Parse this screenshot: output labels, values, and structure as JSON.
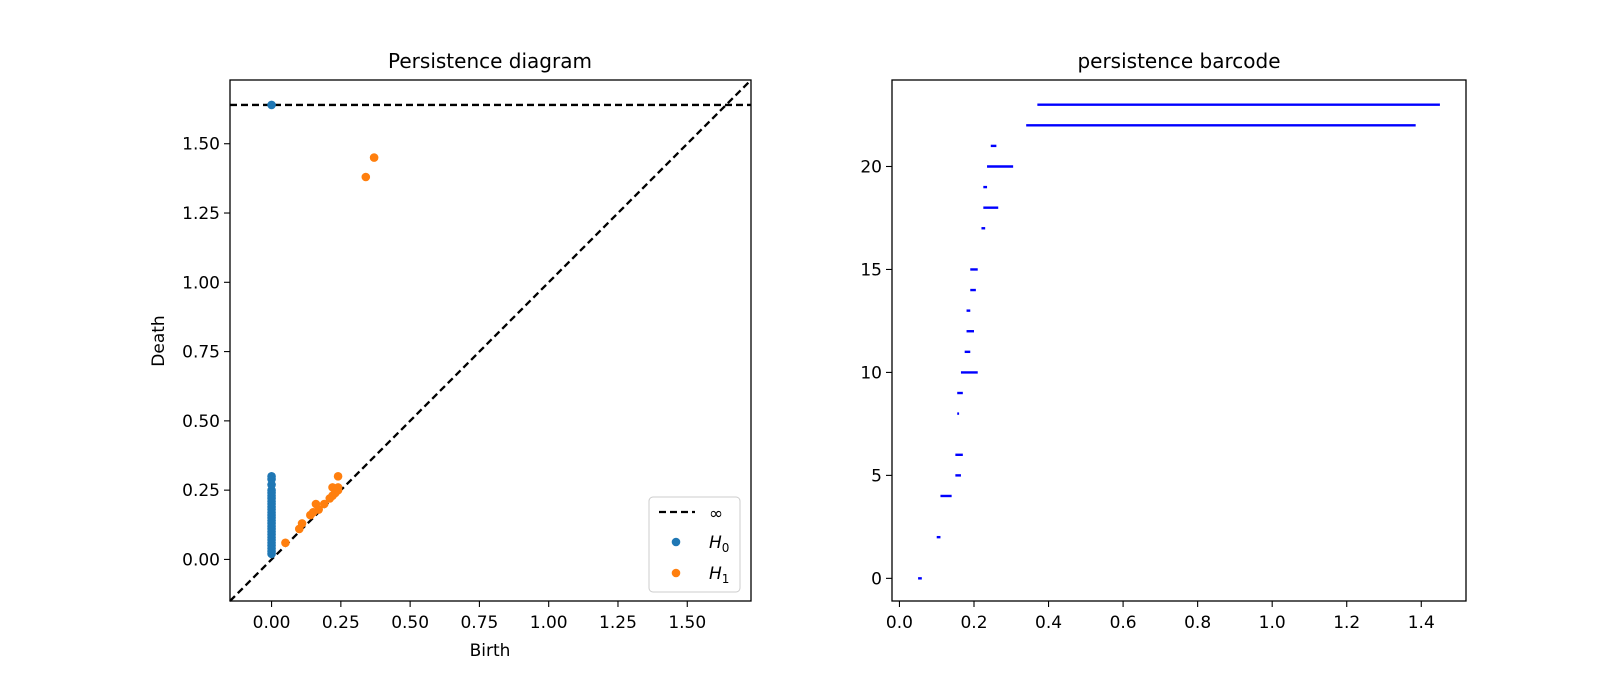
{
  "chart_data": [
    {
      "type": "scatter",
      "title": "Persistence diagram",
      "xlabel": "Birth",
      "ylabel": "Death",
      "xlim": [
        -0.15,
        1.73
      ],
      "ylim": [
        -0.15,
        1.73
      ],
      "grid": false,
      "legend_position": "bottom-right",
      "x_ticks": [
        0.0,
        0.25,
        0.5,
        0.75,
        1.0,
        1.25,
        1.5
      ],
      "x_tick_labels": [
        "0.00",
        "0.25",
        "0.50",
        "0.75",
        "1.00",
        "1.25",
        "1.50"
      ],
      "y_ticks": [
        0.0,
        0.25,
        0.5,
        0.75,
        1.0,
        1.25,
        1.5
      ],
      "y_tick_labels": [
        "0.00",
        "0.25",
        "0.50",
        "0.75",
        "1.00",
        "1.25",
        "1.50"
      ],
      "infinity_line": {
        "y": 1.64,
        "label": "∞",
        "style": "dashed",
        "color": "#000000"
      },
      "diagonal": {
        "style": "dashed",
        "color": "#000000"
      },
      "series": [
        {
          "name": "H0",
          "label_base": "H",
          "label_sub": "0",
          "color": "#1f77b4",
          "points": [
            [
              0,
              0.02
            ],
            [
              0,
              0.03
            ],
            [
              0,
              0.04
            ],
            [
              0,
              0.05
            ],
            [
              0,
              0.06
            ],
            [
              0,
              0.07
            ],
            [
              0,
              0.08
            ],
            [
              0,
              0.09
            ],
            [
              0,
              0.1
            ],
            [
              0,
              0.11
            ],
            [
              0,
              0.12
            ],
            [
              0,
              0.13
            ],
            [
              0,
              0.14
            ],
            [
              0,
              0.15
            ],
            [
              0,
              0.16
            ],
            [
              0,
              0.17
            ],
            [
              0,
              0.18
            ],
            [
              0,
              0.19
            ],
            [
              0,
              0.2
            ],
            [
              0,
              0.21
            ],
            [
              0,
              0.22
            ],
            [
              0,
              0.23
            ],
            [
              0,
              0.24
            ],
            [
              0,
              0.25
            ],
            [
              0,
              0.27
            ],
            [
              0,
              0.29
            ],
            [
              0,
              0.3
            ],
            [
              0,
              1.64
            ]
          ]
        },
        {
          "name": "H1",
          "label_base": "H",
          "label_sub": "1",
          "color": "#ff7f0e",
          "points": [
            [
              0.05,
              0.06
            ],
            [
              0.1,
              0.11
            ],
            [
              0.11,
              0.13
            ],
            [
              0.14,
              0.16
            ],
            [
              0.15,
              0.17
            ],
            [
              0.16,
              0.2
            ],
            [
              0.17,
              0.18
            ],
            [
              0.19,
              0.2
            ],
            [
              0.21,
              0.22
            ],
            [
              0.22,
              0.23
            ],
            [
              0.22,
              0.26
            ],
            [
              0.23,
              0.24
            ],
            [
              0.24,
              0.25
            ],
            [
              0.24,
              0.26
            ],
            [
              0.24,
              0.3
            ],
            [
              0.34,
              1.38
            ],
            [
              0.37,
              1.45
            ]
          ]
        }
      ]
    },
    {
      "type": "barcode",
      "title": "persistence barcode",
      "xlabel": "",
      "ylabel": "",
      "xlim": [
        -0.02,
        1.52
      ],
      "ylim": [
        -1.1,
        24.2
      ],
      "grid": false,
      "color": "#0000ff",
      "x_ticks": [
        0.0,
        0.2,
        0.4,
        0.6,
        0.8,
        1.0,
        1.2,
        1.4
      ],
      "x_tick_labels": [
        "0.0",
        "0.2",
        "0.4",
        "0.6",
        "0.8",
        "1.0",
        "1.2",
        "1.4"
      ],
      "y_ticks": [
        0,
        5,
        10,
        15,
        20
      ],
      "y_tick_labels": [
        "0",
        "5",
        "10",
        "15",
        "20"
      ],
      "bars": [
        {
          "index": 0,
          "birth": 0.05,
          "death": 0.06
        },
        {
          "index": 2,
          "birth": 0.1,
          "death": 0.11
        },
        {
          "index": 4,
          "birth": 0.11,
          "death": 0.14
        },
        {
          "index": 5,
          "birth": 0.15,
          "death": 0.165
        },
        {
          "index": 6,
          "birth": 0.15,
          "death": 0.17
        },
        {
          "index": 8,
          "birth": 0.155,
          "death": 0.16
        },
        {
          "index": 9,
          "birth": 0.155,
          "death": 0.17
        },
        {
          "index": 10,
          "birth": 0.165,
          "death": 0.21
        },
        {
          "index": 11,
          "birth": 0.175,
          "death": 0.19
        },
        {
          "index": 12,
          "birth": 0.18,
          "death": 0.2
        },
        {
          "index": 13,
          "birth": 0.18,
          "death": 0.19
        },
        {
          "index": 14,
          "birth": 0.19,
          "death": 0.205
        },
        {
          "index": 15,
          "birth": 0.19,
          "death": 0.21
        },
        {
          "index": 17,
          "birth": 0.22,
          "death": 0.23
        },
        {
          "index": 18,
          "birth": 0.225,
          "death": 0.265
        },
        {
          "index": 19,
          "birth": 0.225,
          "death": 0.235
        },
        {
          "index": 20,
          "birth": 0.235,
          "death": 0.305
        },
        {
          "index": 21,
          "birth": 0.245,
          "death": 0.26
        },
        {
          "index": 22,
          "birth": 0.34,
          "death": 1.385
        },
        {
          "index": 23,
          "birth": 0.37,
          "death": 1.45
        }
      ]
    }
  ]
}
